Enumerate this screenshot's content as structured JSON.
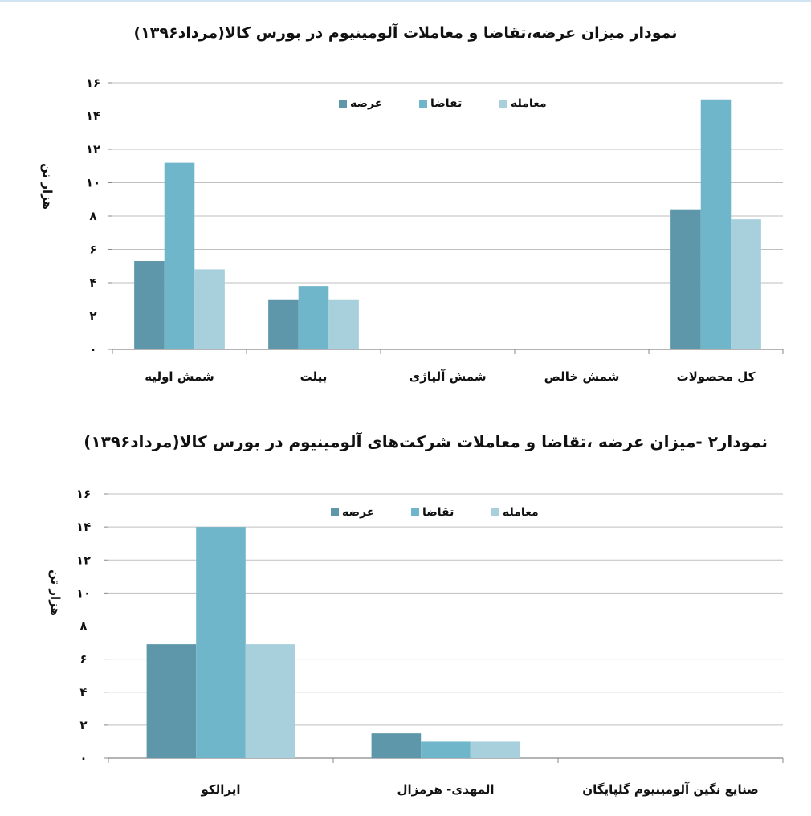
{
  "colors": {
    "supply": "#5E97A9",
    "demand": "#70B6CA",
    "trade": "#A7D0DC",
    "grid": "#BFBFBF",
    "axis": "#888888",
    "text": "#111111",
    "topline": "#CFE6F2"
  },
  "chart_data": [
    {
      "type": "bar",
      "title": "نمودار میزان عرضه،تقاضا و معاملات آلومینیوم در بورس کالا(مرداد۱۳۹۶)",
      "ylabel": "هزار تن",
      "xlabel": "",
      "ylim": [
        0,
        16
      ],
      "yticks": [
        0,
        2,
        4,
        6,
        8,
        10,
        12,
        14,
        16
      ],
      "ytick_labels": [
        "۰",
        "۲",
        "۴",
        "۶",
        "۸",
        "۱۰",
        "۱۲",
        "۱۴",
        "۱۶"
      ],
      "grid": true,
      "legend_position": "top-center",
      "categories": [
        "شمش اولیه",
        "بیلت",
        "شمش آلیاژی",
        "شمش خالص",
        "کل محصولات"
      ],
      "series": [
        {
          "name": "عرضه",
          "color_key": "supply",
          "values": [
            5.3,
            3.0,
            0,
            0,
            8.4
          ]
        },
        {
          "name": "تقاضا",
          "color_key": "demand",
          "values": [
            11.2,
            3.8,
            0,
            0,
            15.0
          ]
        },
        {
          "name": "معامله",
          "color_key": "trade",
          "values": [
            4.8,
            3.0,
            0,
            0,
            7.8
          ]
        }
      ]
    },
    {
      "type": "bar",
      "title": "نمودار۲ -میزان عرضه ،تقاضا و معاملات شرکت‌های آلومینیوم در بورس کالا(مرداد۱۳۹۶)",
      "ylabel": "هزار تن",
      "xlabel": "",
      "ylim": [
        0,
        16
      ],
      "yticks": [
        0,
        2,
        4,
        6,
        8,
        10,
        12,
        14,
        16
      ],
      "ytick_labels": [
        "۰",
        "۲",
        "۴",
        "۶",
        "۸",
        "۱۰",
        "۱۲",
        "۱۴",
        "۱۶"
      ],
      "grid": true,
      "legend_position": "top-center",
      "categories": [
        "ایرالکو",
        "المهدی- هرمزال",
        "صنایع نگین آلومینیوم گلپایگان"
      ],
      "series": [
        {
          "name": "عرضه",
          "color_key": "supply",
          "values": [
            6.9,
            1.5,
            0
          ]
        },
        {
          "name": "تقاضا",
          "color_key": "demand",
          "values": [
            14.0,
            1.0,
            0
          ]
        },
        {
          "name": "معامله",
          "color_key": "trade",
          "values": [
            6.9,
            1.0,
            0
          ]
        }
      ]
    }
  ]
}
